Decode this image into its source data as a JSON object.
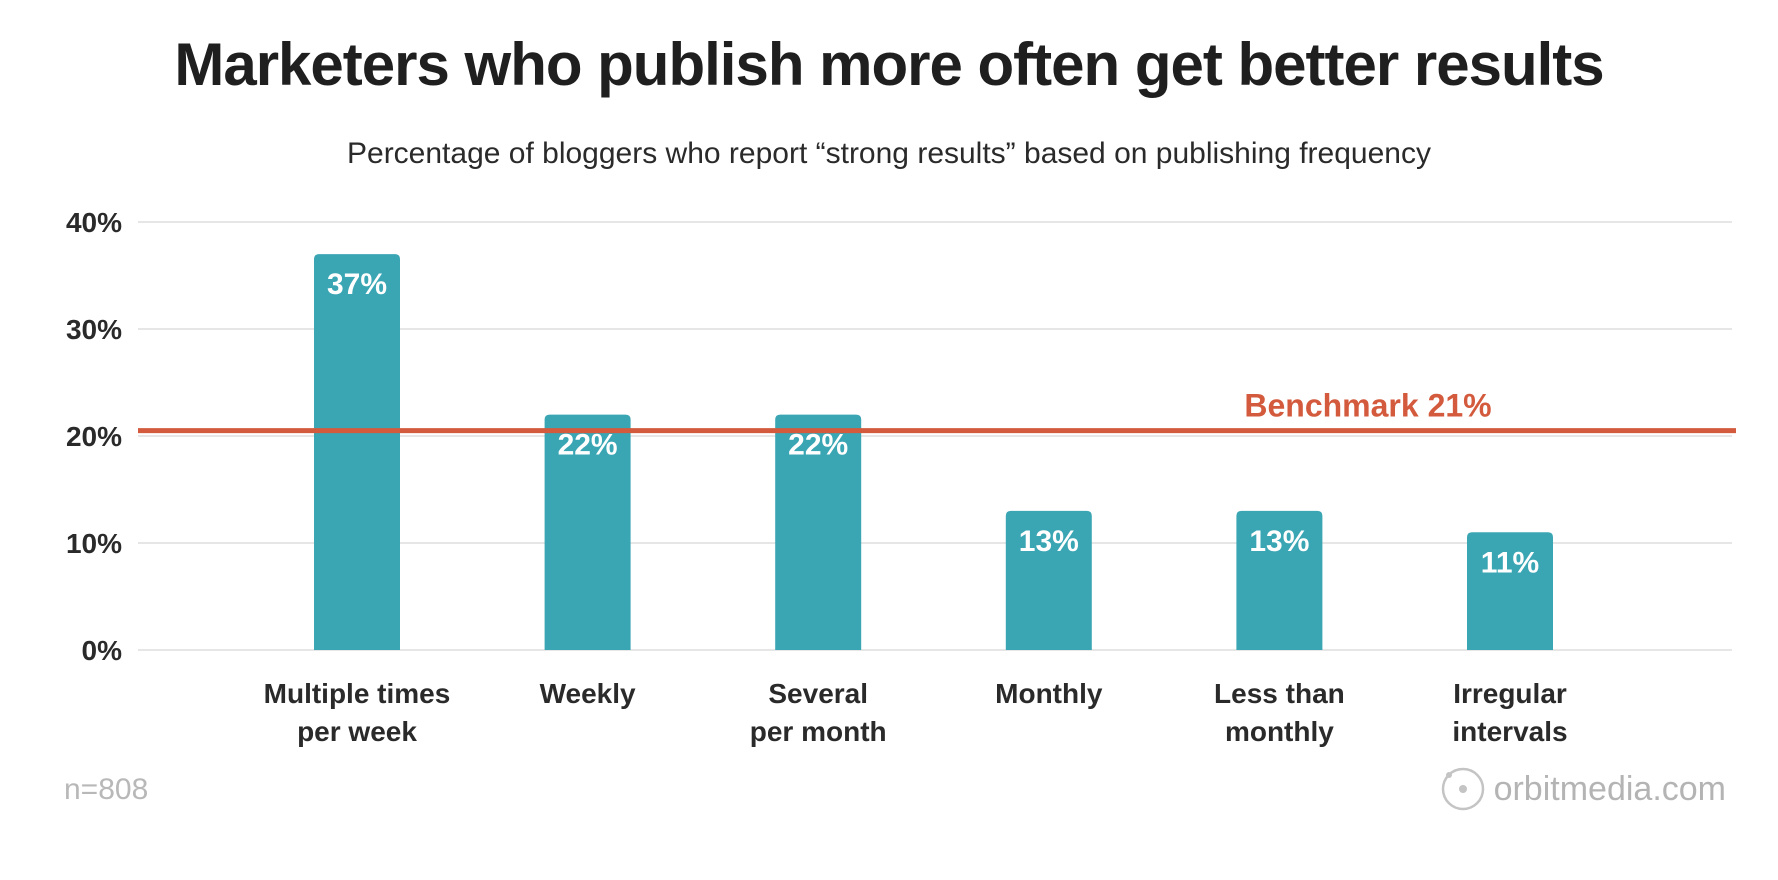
{
  "chart_data": {
    "type": "bar",
    "title": "Marketers who publish more often get better results",
    "subtitle": "Percentage of bloggers who report “strong results” based on publishing frequency",
    "categories": [
      [
        "Multiple times",
        "per week"
      ],
      [
        "Weekly"
      ],
      [
        "Several",
        "per month"
      ],
      [
        "Monthly"
      ],
      [
        "Less than",
        "monthly"
      ],
      [
        "Irregular",
        "intervals"
      ]
    ],
    "values": [
      37,
      22,
      22,
      13,
      13,
      11
    ],
    "value_labels": [
      "37%",
      "22%",
      "22%",
      "13%",
      "13%",
      "11%"
    ],
    "ylim": [
      0,
      40
    ],
    "yticks": [
      0,
      10,
      20,
      30,
      40
    ],
    "ytick_labels": [
      "0%",
      "10%",
      "20%",
      "30%",
      "40%"
    ],
    "grid": true,
    "xlabel": "",
    "ylabel": "",
    "benchmark": {
      "value": 20.5,
      "label": "Benchmark 21%"
    },
    "colors": {
      "bar": "#3aa6b4",
      "benchmark": "#d35a3c",
      "grid": "#e6e6e6"
    }
  },
  "footer": {
    "sample_size": "n=808",
    "brand": "orbitmedia.com",
    "brand_icon": "orbit-logo-icon"
  }
}
